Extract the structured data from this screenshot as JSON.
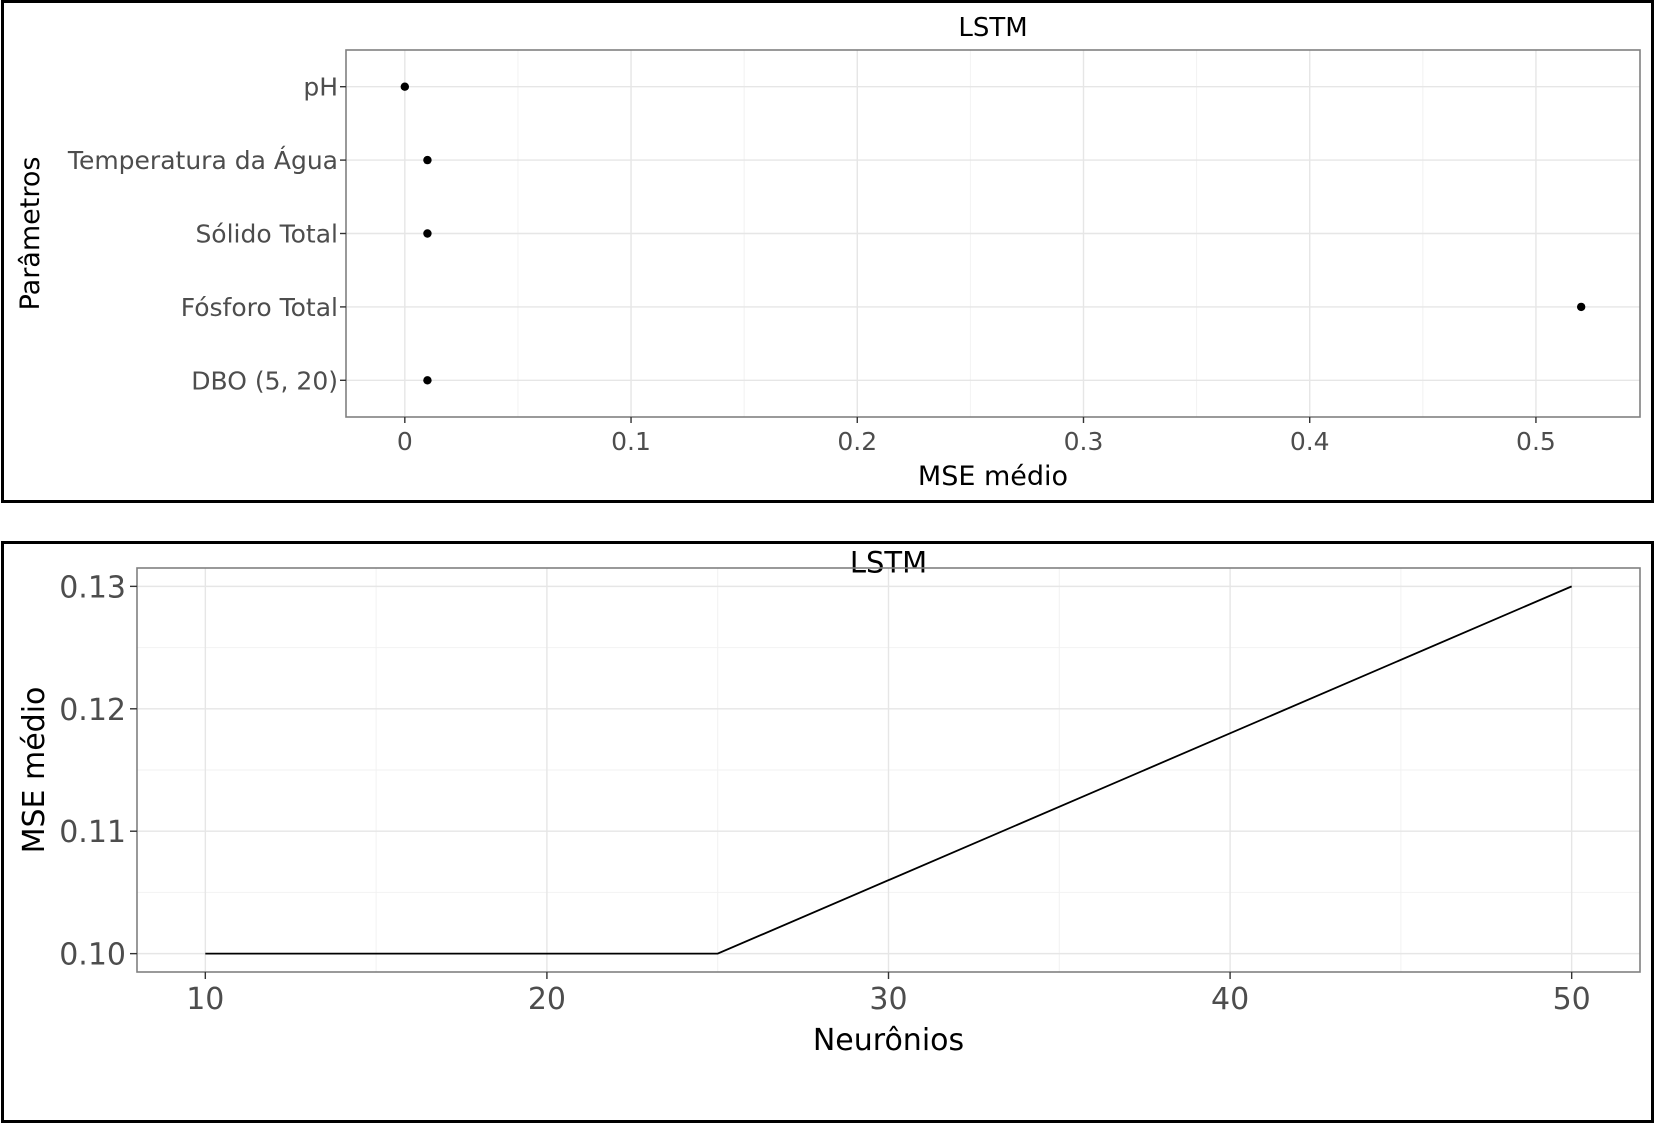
{
  "chart_data": [
    {
      "type": "scatter",
      "title": "LSTM",
      "xlabel": "MSE médio",
      "ylabel": "Parâmetros",
      "categories": [
        "pH",
        "Temperatura da Água",
        "Sólido Total",
        "Fósforo Total",
        "DBO (5, 20)"
      ],
      "values": [
        0.0,
        0.01,
        0.01,
        0.52,
        0.01
      ],
      "xlim": [
        -0.026,
        0.546
      ],
      "xticks": [
        0,
        0.1,
        0.2,
        0.3,
        0.4,
        0.5
      ],
      "xtick_labels": [
        "0",
        "0.1",
        "0.2",
        "0.3",
        "0.4",
        "0.5"
      ],
      "grid": true,
      "point_color": "#000000"
    },
    {
      "type": "line",
      "title": "LSTM",
      "xlabel": "Neurônios",
      "ylabel": "MSE médio",
      "x": [
        10,
        25,
        50
      ],
      "y": [
        0.1,
        0.1,
        0.13
      ],
      "xlim": [
        8,
        52
      ],
      "ylim": [
        0.0985,
        0.1315
      ],
      "xticks": [
        10,
        20,
        30,
        40,
        50
      ],
      "xtick_labels": [
        "10",
        "20",
        "30",
        "40",
        "50"
      ],
      "yticks": [
        0.1,
        0.11,
        0.12,
        0.13
      ],
      "ytick_labels": [
        "0.10",
        "0.11",
        "0.12",
        "0.13"
      ],
      "grid": true,
      "line_color": "#000000"
    }
  ]
}
